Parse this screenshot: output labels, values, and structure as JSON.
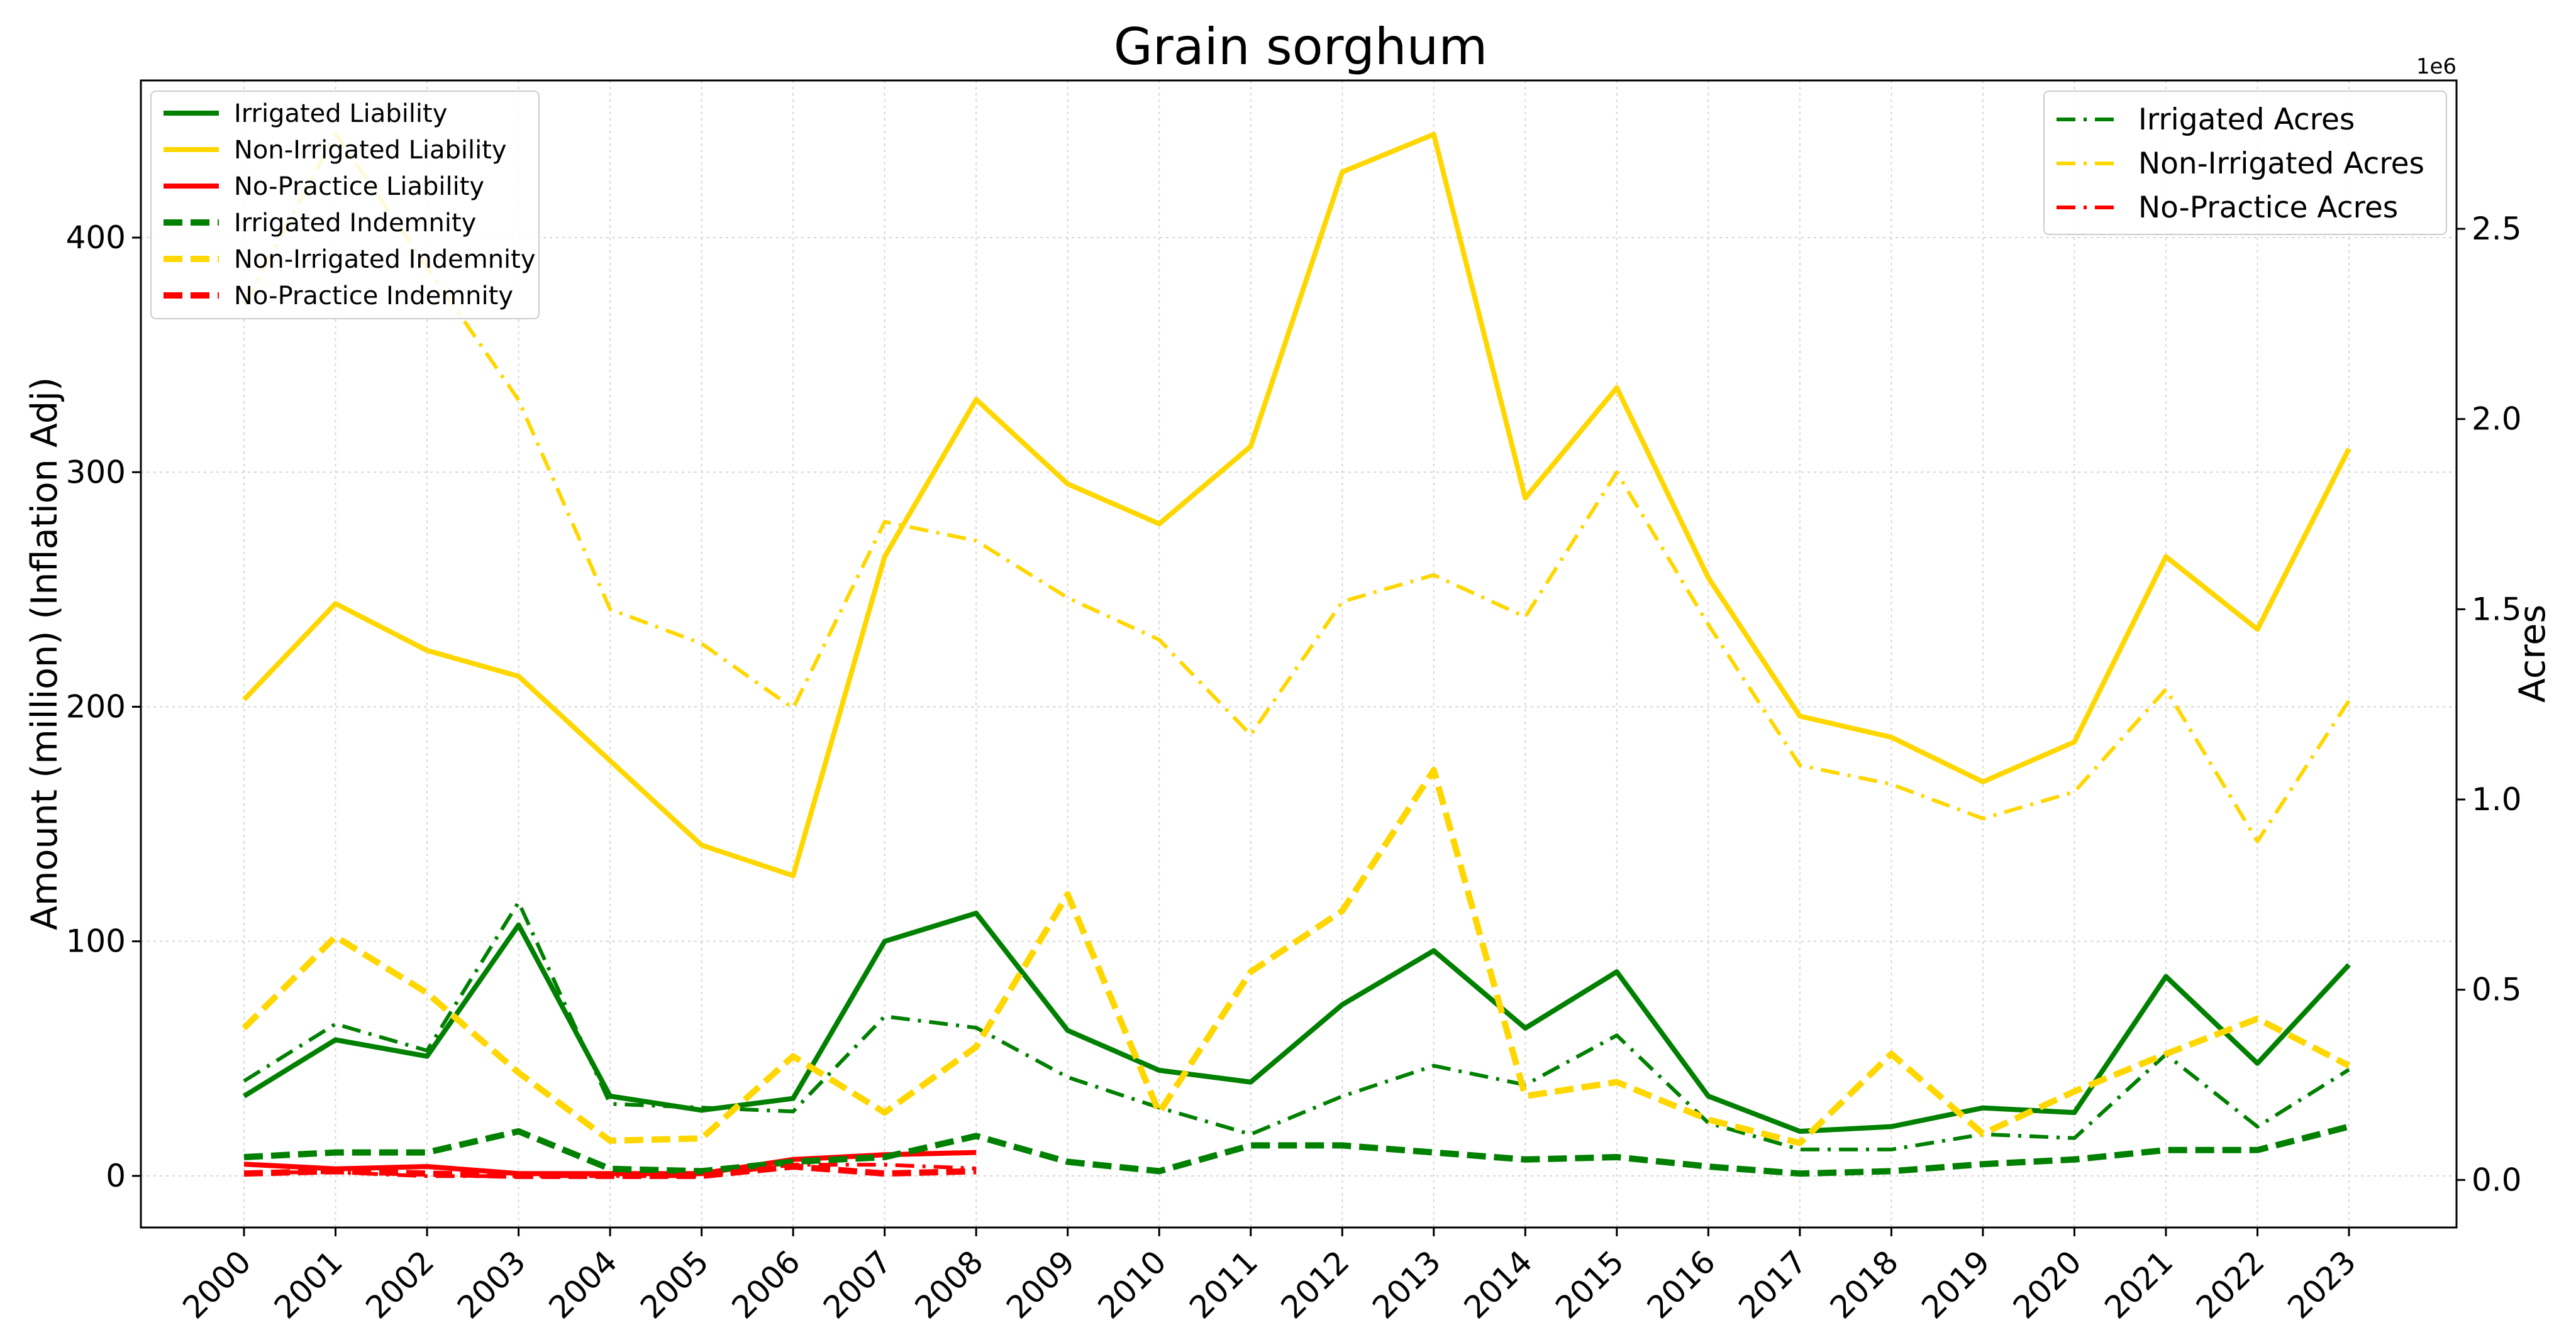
{
  "chart_data": {
    "type": "line",
    "title": "Grain sorghum",
    "ylabel": "Amount (million) (Inflation Adj)",
    "y2label": "Acres",
    "y2_offset_text": "1e6",
    "grid": true,
    "legend_left_position": "upper-left",
    "legend_right_position": "upper-right",
    "x": [
      "2000",
      "2001",
      "2002",
      "2003",
      "2004",
      "2005",
      "2006",
      "2007",
      "2008",
      "2009",
      "2010",
      "2011",
      "2012",
      "2013",
      "2014",
      "2015",
      "2016",
      "2017",
      "2018",
      "2019",
      "2020",
      "2021",
      "2022",
      "2023"
    ],
    "ylim": [
      -22,
      467
    ],
    "yticks": [
      0,
      100,
      200,
      300,
      400
    ],
    "y2lim": [
      -0.125,
      2.89
    ],
    "y2ticks": [
      0.0,
      0.5,
      1.0,
      1.5,
      2.0,
      2.5
    ],
    "colors": {
      "irrigated": "#008000",
      "non_irrigated": "#FFD700",
      "no_practice": "#FF0000"
    },
    "series_left": [
      {
        "name": "Irrigated Liability",
        "color": "#008000",
        "dash": "solid",
        "values": [
          34,
          58,
          51,
          107,
          34,
          28,
          33,
          100,
          112,
          62,
          45,
          40,
          73,
          96,
          63,
          87,
          34,
          19,
          21,
          29,
          27,
          85,
          48,
          90
        ]
      },
      {
        "name": "Non-Irrigated Liability",
        "color": "#FFD700",
        "dash": "solid",
        "values": [
          203,
          244,
          224,
          213,
          177,
          141,
          128,
          264,
          331,
          295,
          278,
          311,
          428,
          444,
          289,
          336,
          255,
          196,
          187,
          168,
          185,
          264,
          233,
          310
        ]
      },
      {
        "name": "No-Practice Liability",
        "color": "#FF0000",
        "dash": "solid",
        "values": [
          5,
          3,
          4,
          1,
          1,
          1,
          7,
          9,
          10,
          null,
          null,
          null,
          null,
          null,
          null,
          null,
          null,
          null,
          null,
          null,
          null,
          null,
          null,
          null
        ]
      },
      {
        "name": "Irrigated Indemnity",
        "color": "#008000",
        "dash": "dashed",
        "values": [
          8,
          10,
          10,
          19,
          3,
          2,
          6,
          8,
          17,
          6,
          2,
          13,
          13,
          10,
          7,
          8,
          4,
          1,
          2,
          5,
          7,
          11,
          11,
          21
        ]
      },
      {
        "name": "Non-Irrigated Indemnity",
        "color": "#FFD700",
        "dash": "dashed",
        "values": [
          63,
          102,
          78,
          44,
          15,
          16,
          51,
          27,
          55,
          120,
          27,
          87,
          113,
          173,
          34,
          40,
          24,
          14,
          52,
          18,
          36,
          52,
          67,
          47
        ]
      },
      {
        "name": "No-Practice Indemnity",
        "color": "#FF0000",
        "dash": "dashed",
        "values": [
          1,
          2,
          1,
          0,
          0,
          0,
          4,
          1,
          2,
          null,
          null,
          null,
          null,
          null,
          null,
          null,
          null,
          null,
          null,
          null,
          null,
          null,
          null,
          null
        ]
      }
    ],
    "series_right": [
      {
        "name": "Irrigated Acres",
        "color": "#008000",
        "dash": "dashdot",
        "values": [
          0.26,
          0.41,
          0.34,
          0.73,
          0.2,
          0.19,
          0.18,
          0.43,
          0.4,
          0.27,
          0.19,
          0.12,
          0.22,
          0.3,
          0.25,
          0.38,
          0.15,
          0.08,
          0.08,
          0.12,
          0.11,
          0.33,
          0.14,
          0.29
        ]
      },
      {
        "name": "Non-Irrigated Acres",
        "color": "#FFD700",
        "dash": "dashdot",
        "values": [
          2.3,
          2.75,
          2.4,
          2.05,
          1.5,
          1.41,
          1.24,
          1.73,
          1.68,
          1.53,
          1.42,
          1.17,
          1.52,
          1.59,
          1.48,
          1.86,
          1.46,
          1.09,
          1.04,
          0.95,
          1.02,
          1.29,
          0.89,
          1.26
        ]
      },
      {
        "name": "No-Practice Acres",
        "color": "#FF0000",
        "dash": "dashdot",
        "values": [
          0.02,
          0.02,
          0.01,
          0.01,
          0.01,
          0.01,
          0.04,
          0.04,
          0.03,
          null,
          null,
          null,
          null,
          null,
          null,
          null,
          null,
          null,
          null,
          null,
          null,
          null,
          null,
          null
        ]
      }
    ]
  }
}
